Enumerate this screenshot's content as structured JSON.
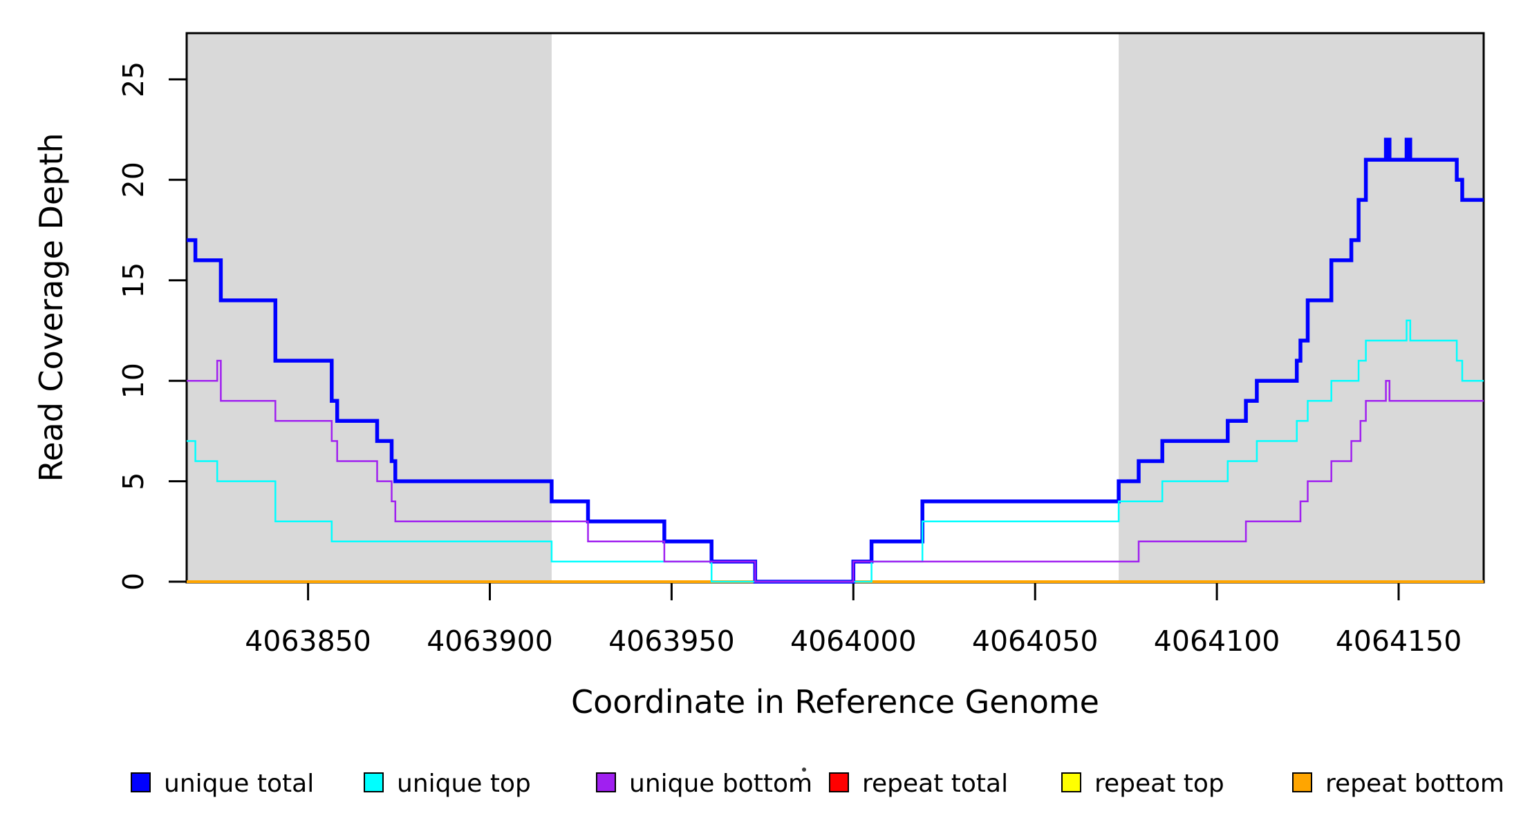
{
  "figure": {
    "background": "#FFFFFF",
    "plot_border_color": "#000000",
    "shaded_band_color": "#D9D9D9"
  },
  "chart_data": {
    "type": "line",
    "step_mode": "step-after",
    "title": "",
    "xlabel": "Coordinate in Reference Genome",
    "ylabel": "Read Coverage Depth",
    "xlim": [
      4063816.6,
      4064173.4
    ],
    "ylim": [
      0,
      27.3
    ],
    "x_ticks": [
      4063850,
      4063900,
      4063950,
      4064000,
      4064050,
      4064100,
      4064150
    ],
    "y_ticks": [
      0,
      5,
      10,
      15,
      20,
      25
    ],
    "grid": false,
    "legend_position": "bottom",
    "shaded_regions": [
      {
        "name": "left-gray-band",
        "x_start": 4063816.6,
        "x_end": 4063917,
        "color": "#D9D9D9"
      },
      {
        "name": "right-gray-band",
        "x_start": 4064073,
        "x_end": 4064173.4,
        "color": "#D9D9D9"
      }
    ],
    "series": [
      {
        "name": "repeat total",
        "color": "#FF0000",
        "width": 2.5,
        "points": [
          [
            4063816.6,
            0
          ]
        ]
      },
      {
        "name": "repeat top",
        "color": "#FFFF00",
        "width": 2.5,
        "points": [
          [
            4063816.6,
            0
          ]
        ]
      },
      {
        "name": "repeat bottom",
        "color": "#FFA500",
        "width": 4,
        "points": [
          [
            4063816.6,
            0
          ]
        ]
      },
      {
        "name": "unique total",
        "color": "#0000FF",
        "width": 5.5,
        "points": [
          [
            4063816.6,
            17
          ],
          [
            4063819,
            16
          ],
          [
            4063826,
            14
          ],
          [
            4063841,
            11
          ],
          [
            4063856.5,
            9
          ],
          [
            4063858,
            8
          ],
          [
            4063869,
            7
          ],
          [
            4063873,
            6
          ],
          [
            4063874,
            5
          ],
          [
            4063917,
            4
          ],
          [
            4063927,
            3
          ],
          [
            4063948,
            2
          ],
          [
            4063961,
            1
          ],
          [
            4063973,
            0
          ],
          [
            4064000,
            1
          ],
          [
            4064005,
            2
          ],
          [
            4064019,
            4
          ],
          [
            4064073,
            5
          ],
          [
            4064078.5,
            6
          ],
          [
            4064085,
            7
          ],
          [
            4064103,
            8
          ],
          [
            4064108,
            9
          ],
          [
            4064111,
            10
          ],
          [
            4064122,
            11
          ],
          [
            4064123,
            12
          ],
          [
            4064125,
            14
          ],
          [
            4064131.5,
            16
          ],
          [
            4064137,
            17
          ],
          [
            4064139,
            19
          ],
          [
            4064141,
            21
          ],
          [
            4064146.5,
            22
          ],
          [
            4064147.5,
            21
          ],
          [
            4064152.2,
            22
          ],
          [
            4064153.2,
            21
          ],
          [
            4064166,
            20
          ],
          [
            4064167.5,
            19
          ]
        ]
      },
      {
        "name": "unique top",
        "color": "#00FFFF",
        "width": 2.5,
        "points": [
          [
            4063816.6,
            7
          ],
          [
            4063819,
            6
          ],
          [
            4063825,
            5
          ],
          [
            4063841,
            3
          ],
          [
            4063856.5,
            2
          ],
          [
            4063917,
            1
          ],
          [
            4063961,
            0
          ],
          [
            4064005,
            1
          ],
          [
            4064019,
            3
          ],
          [
            4064073,
            4
          ],
          [
            4064085,
            5
          ],
          [
            4064103,
            6
          ],
          [
            4064111,
            7
          ],
          [
            4064122,
            8
          ],
          [
            4064125,
            9
          ],
          [
            4064131.5,
            10
          ],
          [
            4064139,
            11
          ],
          [
            4064141,
            12
          ],
          [
            4064152.2,
            13
          ],
          [
            4064153.2,
            12
          ],
          [
            4064166,
            11
          ],
          [
            4064167.5,
            10
          ]
        ]
      },
      {
        "name": "unique bottom",
        "color": "#A020F0",
        "width": 2.5,
        "points": [
          [
            4063816.6,
            10
          ],
          [
            4063825,
            11
          ],
          [
            4063826,
            9
          ],
          [
            4063841,
            8
          ],
          [
            4063856.5,
            7
          ],
          [
            4063858,
            6
          ],
          [
            4063869,
            5
          ],
          [
            4063873,
            4
          ],
          [
            4063874,
            3
          ],
          [
            4063927,
            2
          ],
          [
            4063948,
            1
          ],
          [
            4063973,
            0
          ],
          [
            4064000,
            1
          ],
          [
            4064078.5,
            2
          ],
          [
            4064108,
            3
          ],
          [
            4064123,
            4
          ],
          [
            4064125,
            5
          ],
          [
            4064131.5,
            6
          ],
          [
            4064137,
            7
          ],
          [
            4064139.5,
            8
          ],
          [
            4064141,
            9
          ],
          [
            4064146.5,
            10
          ],
          [
            4064147.5,
            9
          ]
        ]
      }
    ]
  },
  "legend": {
    "items": [
      {
        "label": "unique total",
        "color": "#0000FF"
      },
      {
        "label": "unique top",
        "color": "#00FFFF"
      },
      {
        "label": "unique bottom",
        "color": "#A020F0"
      },
      {
        "label": "repeat total",
        "color": "#FF0000"
      },
      {
        "label": "repeat top",
        "color": "#FFFF00"
      },
      {
        "label": "repeat bottom",
        "color": "#FFA500"
      }
    ]
  }
}
